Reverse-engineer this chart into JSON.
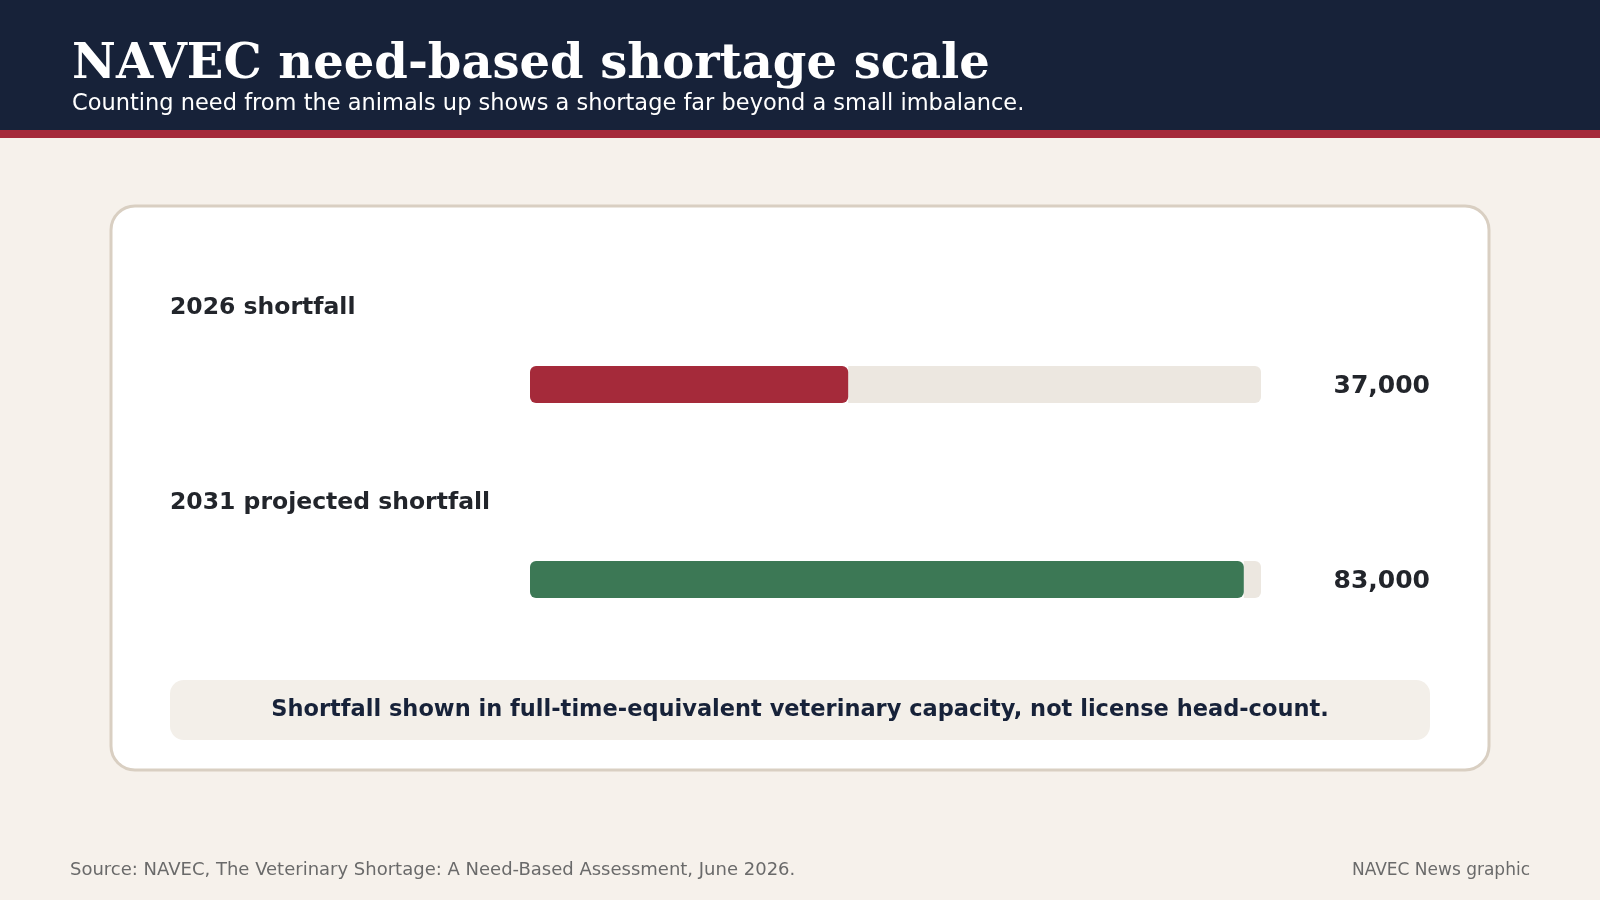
{
  "chart_data": {
    "type": "bar",
    "orientation": "horizontal",
    "title": "NAVEC need-based shortage scale",
    "subtitle": "Counting need from the animals up shows a shortage far beyond a small imbalance.",
    "categories": [
      "2026 shortfall",
      "2031 projected shortfall"
    ],
    "values": [
      37000,
      83000
    ],
    "colors": [
      "#a52a3a",
      "#3c7855"
    ],
    "value_labels": [
      "37,000",
      "83,000"
    ],
    "xlim": [
      0,
      85000
    ],
    "annotations": [
      "Shortfall shown in full-time-equivalent veterinary capacity, not license head-count.",
      "Source: NAVEC, The Veterinary Shortage: A Need-Based Assessment, June 2026.",
      "NAVEC News graphic"
    ]
  }
}
